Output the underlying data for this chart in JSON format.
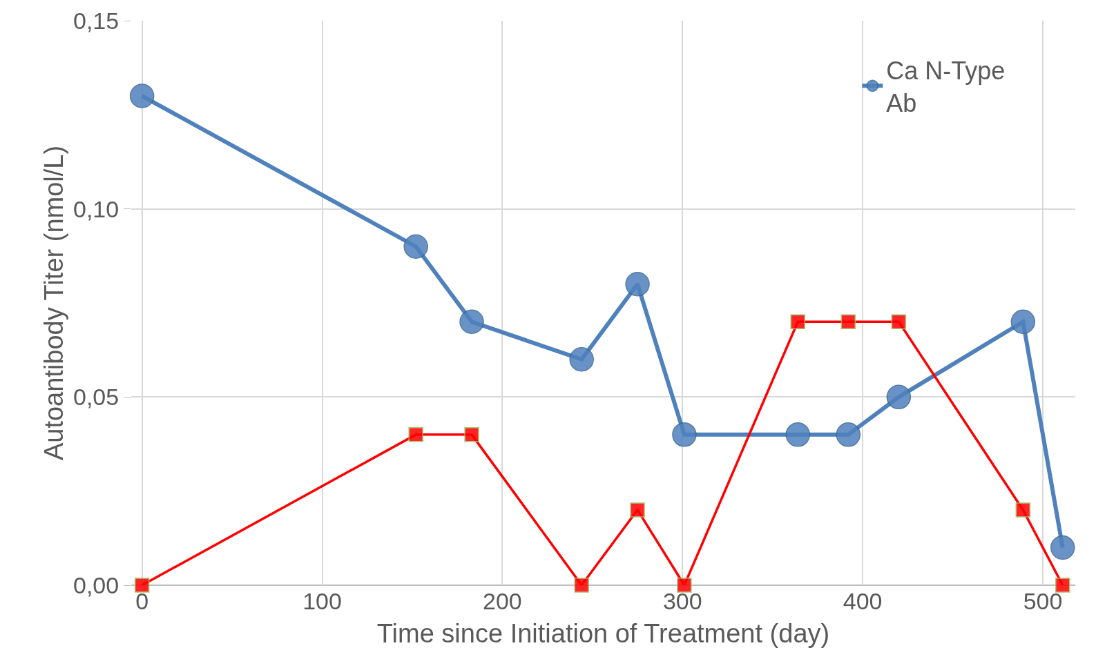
{
  "chart_data": {
    "type": "line",
    "xlabel": "Time since Initiation of Treatment (day)",
    "ylabel": "Autoantibody Titer (nmol/L)",
    "x": [
      0,
      152,
      183,
      244,
      275,
      301,
      364,
      392,
      420,
      489,
      511
    ],
    "series": [
      {
        "name": "Ca N-Type Ab",
        "color": "#4f81bd",
        "marker": "circle",
        "values": [
          0.13,
          0.09,
          0.07,
          0.06,
          0.08,
          0.04,
          0.04,
          0.04,
          0.05,
          0.07,
          0.01
        ]
      },
      {
        "color": "#ff0000",
        "marker": "square",
        "values": [
          0,
          0.04,
          0.04,
          0,
          0.02,
          0,
          0.07,
          0.07,
          0.07,
          0.02,
          0
        ]
      }
    ],
    "xlim": [
      -6,
      518
    ],
    "xticks": [
      0,
      100,
      200,
      300,
      400,
      500
    ],
    "ylim": [
      0,
      0.15
    ],
    "yticks": [
      {
        "value": 0,
        "label": "0,00"
      },
      {
        "value": 0.05,
        "label": "0,05"
      },
      {
        "value": 0.1,
        "label": "0,10"
      },
      {
        "value": 0.15,
        "label": "0,15"
      }
    ],
    "grid": true,
    "legend": "top right"
  }
}
